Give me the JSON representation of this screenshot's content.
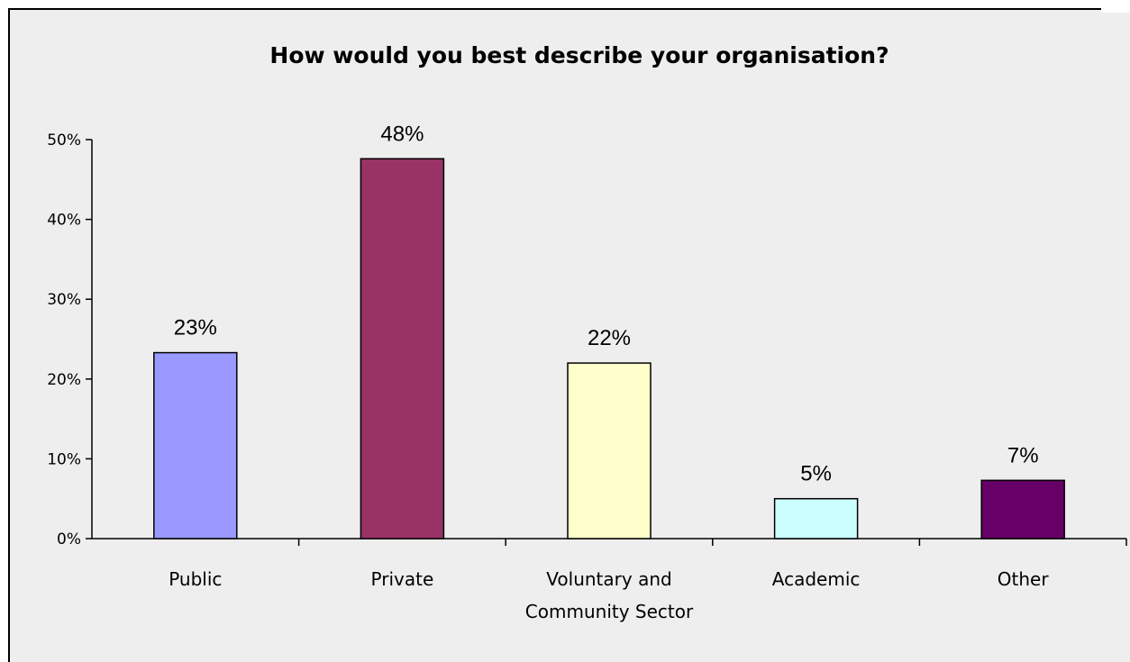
{
  "chart_data": {
    "type": "bar",
    "title": "How would you best describe your organisation?",
    "categories": [
      "Public",
      "Private",
      "Voluntary and Community Sector",
      "Academic",
      "Other"
    ],
    "category_lines": [
      [
        "Public"
      ],
      [
        "Private"
      ],
      [
        "Voluntary and",
        "Community Sector"
      ],
      [
        "Academic"
      ],
      [
        "Other"
      ]
    ],
    "values": [
      23.3,
      47.6,
      22.0,
      5.0,
      7.3
    ],
    "data_labels": [
      "23%",
      "48%",
      "22%",
      "5%",
      "7%"
    ],
    "bar_colors": [
      "#9999FF",
      "#993366",
      "#FFFFCC",
      "#CCFFFF",
      "#660066"
    ],
    "ylim": [
      0,
      50
    ],
    "yticks": [
      0,
      10,
      20,
      30,
      40,
      50
    ],
    "ytick_labels": [
      "0%",
      "10%",
      "20%",
      "30%",
      "40%",
      "50%"
    ],
    "xlabel": "",
    "ylabel": "",
    "grid": false,
    "legend": "none",
    "background_color": "#EEEEEE"
  }
}
